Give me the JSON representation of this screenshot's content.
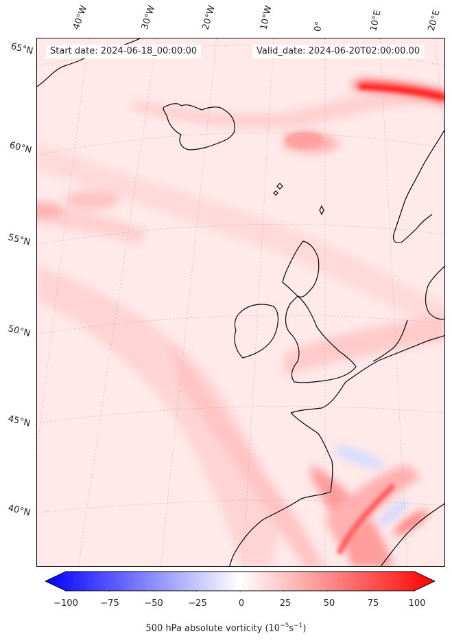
{
  "map": {
    "start_date": "Start date: 2024-06-18_00:00:00",
    "valid_date": "Valid_date: 2024-06-20T02:00:00.00",
    "lon_labels": [
      "40°W",
      "30°W",
      "20°W",
      "10°W",
      "0°",
      "10°E",
      "20°E"
    ],
    "lat_labels": [
      "65°N",
      "60°N",
      "55°N",
      "50°N",
      "45°N",
      "40°N"
    ]
  },
  "colorbar": {
    "label": "500 hPa absolute vorticity (10",
    "label_exp": "−5",
    "label_unit": "s",
    "label_exp2": "−1",
    "label_end": ")",
    "ticks": [
      "−100",
      "−75",
      "−50",
      "−25",
      "0",
      "25",
      "50",
      "75",
      "100"
    ],
    "colors": {
      "min": "#0000ff",
      "mid": "#ffffff",
      "max": "#ff0000"
    }
  }
}
